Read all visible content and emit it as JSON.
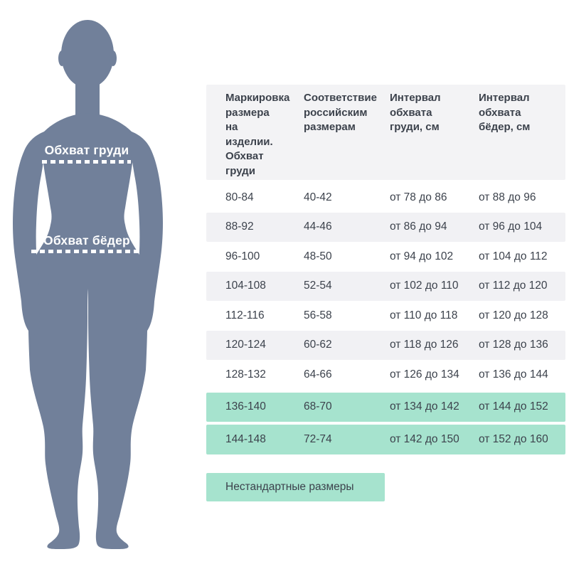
{
  "colors": {
    "background": "#ffffff",
    "text": "#3c424c",
    "header_bg": "#f3f3f5",
    "stripe": "#f1f1f4",
    "highlight": "#a6e3ce",
    "silhouette": "#71809a",
    "annotation": "#ffffff"
  },
  "figure": {
    "chest_label": "Обхват груди",
    "hips_label": "Обхват бёдер"
  },
  "table": {
    "headers": [
      "Маркировка\nразмера\nна изделии.\nОбхват\nгруди",
      "Соответствие\nроссийским\nразмерам",
      "Интервал\nобхвата\nгруди, см",
      "Интервал\nобхвата\nбёдер, см"
    ],
    "rows": [
      {
        "cells": [
          "80-84",
          "40-42",
          "от 78 до 86",
          "от 88 до 96"
        ],
        "highlight": false
      },
      {
        "cells": [
          "88-92",
          "44-46",
          "от 86 до 94",
          "от 96 до 104"
        ],
        "highlight": false
      },
      {
        "cells": [
          "96-100",
          "48-50",
          "от 94 до 102",
          "от 104 до 112"
        ],
        "highlight": false
      },
      {
        "cells": [
          "104-108",
          "52-54",
          "от 102 до 110",
          "от 112 до 120"
        ],
        "highlight": false
      },
      {
        "cells": [
          "112-116",
          "56-58",
          "от 110 до 118",
          "от 120 до 128"
        ],
        "highlight": false
      },
      {
        "cells": [
          "120-124",
          "60-62",
          "от 118 до 126",
          "от 128 до 136"
        ],
        "highlight": false
      },
      {
        "cells": [
          "128-132",
          "64-66",
          "от 126 до 134",
          "от 136 до 144"
        ],
        "highlight": false
      },
      {
        "cells": [
          "136-140",
          "68-70",
          "от 134 до 142",
          "от 144 до 152"
        ],
        "highlight": true
      },
      {
        "cells": [
          "144-148",
          "72-74",
          "от 142 до 150",
          "от 152 до 160"
        ],
        "highlight": true
      }
    ],
    "legend_label": "Нестандартные размеры"
  },
  "chart_data": {
    "type": "table",
    "columns": [
      "Маркировка размера на изделии. Обхват груди",
      "Соответствие российским размерам",
      "Интервал обхвата груди, см",
      "Интервал обхвата бёдер, см"
    ],
    "rows": [
      [
        "80-84",
        "40-42",
        "от 78 до 86",
        "от 88 до 96"
      ],
      [
        "88-92",
        "44-46",
        "от 86 до 94",
        "от 96 до 104"
      ],
      [
        "96-100",
        "48-50",
        "от 94 до 102",
        "от 104 до 112"
      ],
      [
        "104-108",
        "52-54",
        "от 102 до 110",
        "от 112 до 120"
      ],
      [
        "112-116",
        "56-58",
        "от 110 до 118",
        "от 120 до 128"
      ],
      [
        "120-124",
        "60-62",
        "от 118 до 126",
        "от 128 до 136"
      ],
      [
        "128-132",
        "64-66",
        "от 126 до 134",
        "от 136 до 144"
      ],
      [
        "136-140",
        "68-70",
        "от 134 до 142",
        "от 144 до 152"
      ],
      [
        "144-148",
        "72-74",
        "от 142 до 150",
        "от 152 до 160"
      ]
    ],
    "highlighted_rows": [
      7,
      8
    ],
    "highlighted_rows_label": "Нестандартные размеры",
    "figure_annotations": [
      "Обхват груди",
      "Обхват бёдер"
    ]
  }
}
